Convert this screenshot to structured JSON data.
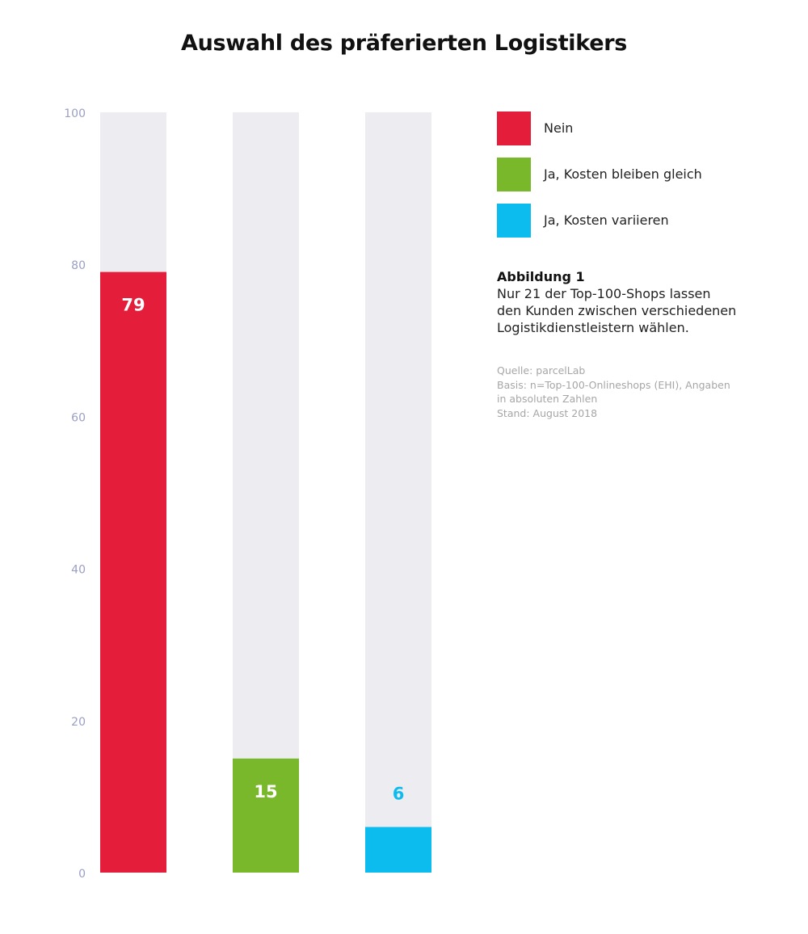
{
  "chart_data": {
    "type": "bar",
    "title": "Auswahl des präferierten Logistikers",
    "categories": [
      "Nein",
      "Ja, Kosten bleiben gleich",
      "Ja, Kosten variieren"
    ],
    "values": [
      79,
      15,
      6
    ],
    "colors": [
      "#e41d3a",
      "#79b82b",
      "#0cbcef"
    ],
    "track_color": "#ececf1",
    "ylim": [
      0,
      100
    ],
    "yticks": [
      "0",
      "20",
      "40",
      "60",
      "80",
      "100"
    ],
    "axis_tick_color": "#9a9fc4",
    "grid": false,
    "legend_position": "right"
  },
  "legend": {
    "items": [
      {
        "label": "Nein",
        "color": "#e41d3a"
      },
      {
        "label": "Ja, Kosten bleiben gleich",
        "color": "#79b82b"
      },
      {
        "label": "Ja, Kosten variieren",
        "color": "#0cbcef"
      }
    ]
  },
  "figure": {
    "label": "Abbildung 1",
    "lines": [
      "Nur 21 der Top-100-Shops lassen",
      "den Kunden zwischen verschiedenen",
      "Logistikdienstleistern wählen."
    ]
  },
  "source": {
    "lines": [
      "Quelle: parcelLab",
      "Basis: n=Top-100-Onlineshops (EHI), Angaben",
      "in absoluten Zahlen",
      "Stand: August 2018"
    ]
  }
}
